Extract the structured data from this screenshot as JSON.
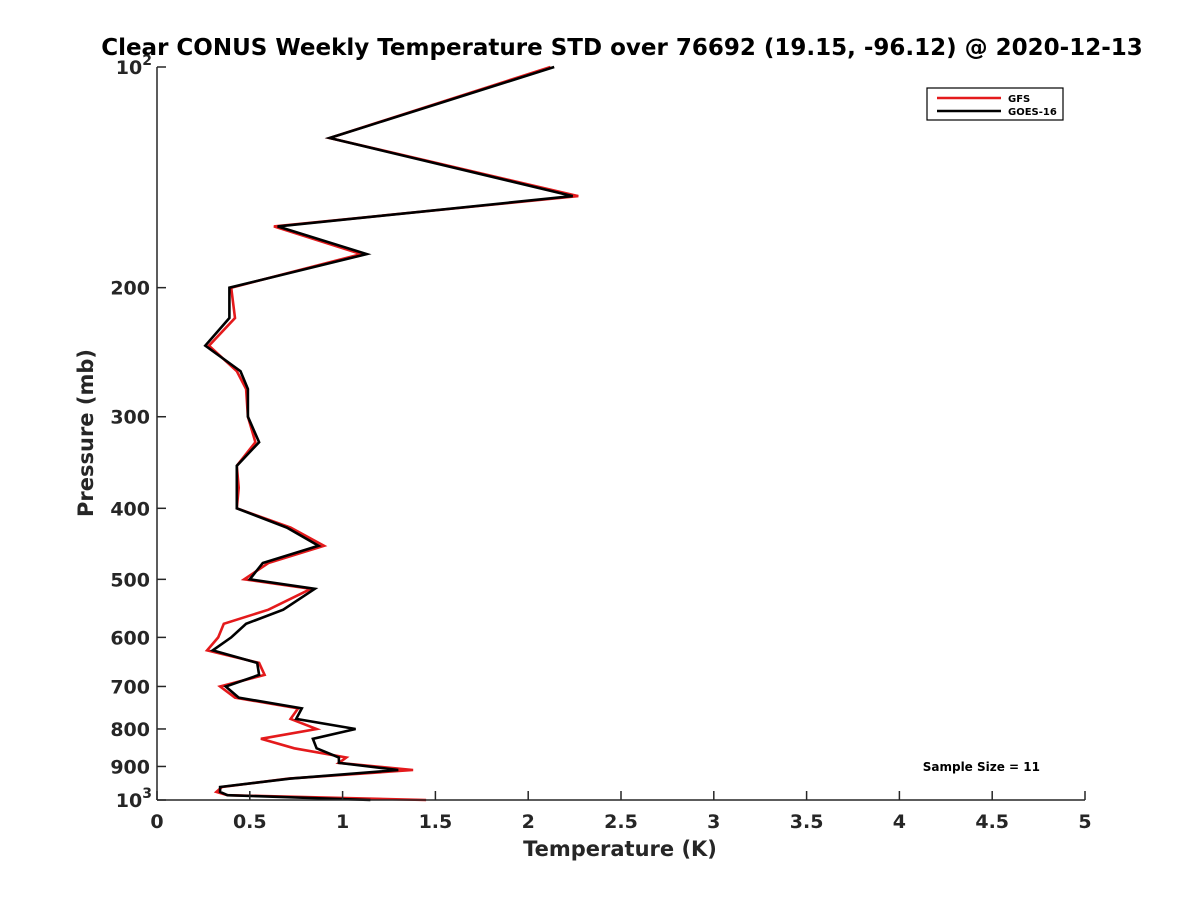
{
  "chart_data": {
    "type": "line",
    "title": "Clear CONUS Weekly Temperature STD over 76692 (19.15, -96.12) @ 2020-12-13",
    "xlabel": "Temperature (K)",
    "ylabel": "Pressure (mb)",
    "xlim": [
      0,
      5
    ],
    "ylim": [
      1000,
      100
    ],
    "y_scale": "log",
    "x_ticks": [
      "0",
      "0.5",
      "1",
      "1.5",
      "2",
      "2.5",
      "3",
      "3.5",
      "4",
      "4.5",
      "5"
    ],
    "y_ticks": [
      {
        "value": 100,
        "base": "10",
        "exp": "2"
      },
      {
        "value": 200,
        "label": "200"
      },
      {
        "value": 300,
        "label": "300"
      },
      {
        "value": 400,
        "label": "400"
      },
      {
        "value": 500,
        "label": "500"
      },
      {
        "value": 600,
        "label": "600"
      },
      {
        "value": 700,
        "label": "700"
      },
      {
        "value": 800,
        "label": "800"
      },
      {
        "value": 900,
        "label": "900"
      },
      {
        "value": 1000,
        "base": "10",
        "exp": "3"
      }
    ],
    "grid": false,
    "legend_position": "top-right",
    "annotation": "Sample Size = 11",
    "series": [
      {
        "name": "GFS",
        "color": "#e41a1c",
        "points": [
          [
            2.12,
            100
          ],
          [
            0.93,
            125
          ],
          [
            2.27,
            150
          ],
          [
            0.63,
            165
          ],
          [
            1.1,
            180
          ],
          [
            0.4,
            200
          ],
          [
            0.42,
            220
          ],
          [
            0.28,
            240
          ],
          [
            0.43,
            260
          ],
          [
            0.48,
            275
          ],
          [
            0.49,
            300
          ],
          [
            0.53,
            325
          ],
          [
            0.43,
            350
          ],
          [
            0.44,
            375
          ],
          [
            0.43,
            400
          ],
          [
            0.72,
            425
          ],
          [
            0.9,
            450
          ],
          [
            0.6,
            475
          ],
          [
            0.47,
            500
          ],
          [
            0.83,
            515
          ],
          [
            0.6,
            550
          ],
          [
            0.36,
            575
          ],
          [
            0.33,
            600
          ],
          [
            0.27,
            625
          ],
          [
            0.55,
            650
          ],
          [
            0.58,
            675
          ],
          [
            0.34,
            700
          ],
          [
            0.42,
            725
          ],
          [
            0.76,
            750
          ],
          [
            0.72,
            775
          ],
          [
            0.86,
            800
          ],
          [
            0.56,
            825
          ],
          [
            0.74,
            850
          ],
          [
            1.02,
            875
          ],
          [
            0.98,
            890
          ],
          [
            1.38,
            910
          ],
          [
            0.71,
            935
          ],
          [
            0.35,
            960
          ],
          [
            0.32,
            975
          ],
          [
            0.38,
            985
          ],
          [
            1.45,
            1000
          ]
        ]
      },
      {
        "name": "GOES-16",
        "color": "#000000",
        "points": [
          [
            2.14,
            100
          ],
          [
            0.93,
            125
          ],
          [
            2.24,
            150
          ],
          [
            0.65,
            165
          ],
          [
            1.13,
            180
          ],
          [
            0.39,
            200
          ],
          [
            0.39,
            220
          ],
          [
            0.26,
            240
          ],
          [
            0.45,
            260
          ],
          [
            0.49,
            275
          ],
          [
            0.49,
            300
          ],
          [
            0.55,
            325
          ],
          [
            0.43,
            350
          ],
          [
            0.43,
            375
          ],
          [
            0.43,
            400
          ],
          [
            0.7,
            425
          ],
          [
            0.87,
            450
          ],
          [
            0.57,
            475
          ],
          [
            0.5,
            500
          ],
          [
            0.85,
            515
          ],
          [
            0.68,
            550
          ],
          [
            0.48,
            575
          ],
          [
            0.4,
            600
          ],
          [
            0.3,
            625
          ],
          [
            0.54,
            650
          ],
          [
            0.55,
            675
          ],
          [
            0.37,
            700
          ],
          [
            0.44,
            725
          ],
          [
            0.78,
            750
          ],
          [
            0.75,
            775
          ],
          [
            1.07,
            800
          ],
          [
            0.84,
            825
          ],
          [
            0.86,
            850
          ],
          [
            0.98,
            875
          ],
          [
            0.98,
            890
          ],
          [
            1.3,
            910
          ],
          [
            0.72,
            935
          ],
          [
            0.34,
            960
          ],
          [
            0.34,
            975
          ],
          [
            0.38,
            985
          ],
          [
            1.15,
            1000
          ]
        ]
      }
    ]
  }
}
